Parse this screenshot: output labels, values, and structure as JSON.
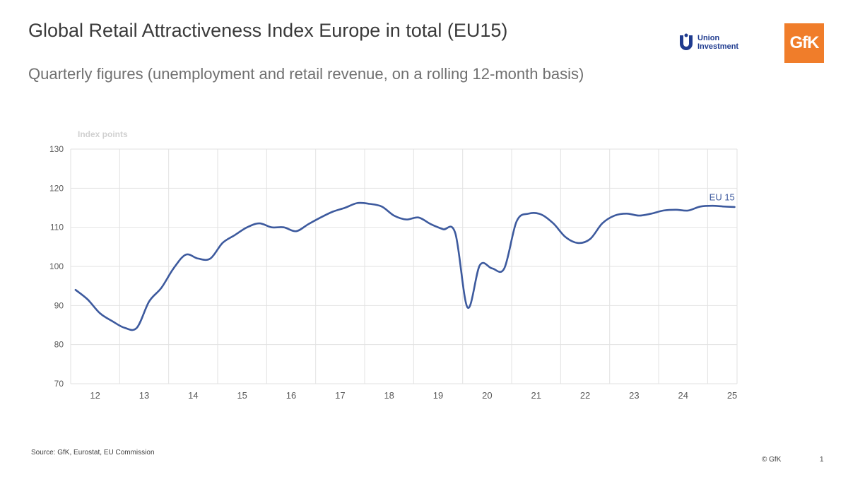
{
  "header": {
    "title": "Global Retail Attractiveness Index Europe in total (EU15)",
    "subtitle": "Quarterly figures (unemployment and retail revenue, on a rolling 12-month basis)"
  },
  "logos": {
    "union_investment_line1": "Union",
    "union_investment_line2": "Investment",
    "gfk": "GfK"
  },
  "footer": {
    "source": "Source: GfK, Eurostat, EU Commission",
    "copyright": "© GfK",
    "page_number": "1"
  },
  "colors": {
    "line": "#3d5a9e",
    "grid": "#e2e2e2",
    "axis_text": "#595959",
    "gfk_orange": "#f07d2a",
    "union_blue": "#1f3b8f"
  },
  "chart_data": {
    "type": "line",
    "ylabel": "Index points",
    "xlabel": "",
    "ylim": [
      70,
      130
    ],
    "yticks": [
      70,
      80,
      90,
      100,
      110,
      120,
      130
    ],
    "xlim": [
      11.5,
      25.1
    ],
    "xtick_values": [
      12,
      13,
      14,
      15,
      16,
      17,
      18,
      19,
      20,
      21,
      22,
      23,
      24,
      25
    ],
    "xtick_labels": [
      "12",
      "13",
      "14",
      "15",
      "16",
      "17",
      "18",
      "19",
      "20",
      "21",
      "22",
      "23",
      "24",
      "25"
    ],
    "grid": true,
    "series": [
      {
        "name": "EU 15",
        "x": [
          11.6,
          11.85,
          12.1,
          12.35,
          12.6,
          12.85,
          13.1,
          13.35,
          13.6,
          13.85,
          14.1,
          14.35,
          14.6,
          14.85,
          15.1,
          15.35,
          15.6,
          15.85,
          16.1,
          16.35,
          16.6,
          16.85,
          17.1,
          17.35,
          17.6,
          17.85,
          18.1,
          18.35,
          18.6,
          18.85,
          19.1,
          19.35,
          19.6,
          19.85,
          20.1,
          20.35,
          20.6,
          20.85,
          21.1,
          21.35,
          21.6,
          21.85,
          22.1,
          22.35,
          22.6,
          22.85,
          23.1,
          23.35,
          23.6,
          23.85,
          24.1,
          24.35,
          24.6,
          24.85,
          25.05
        ],
        "y": [
          94,
          91.5,
          88,
          86,
          84.3,
          84.3,
          91,
          94.5,
          99.5,
          103,
          102,
          102,
          106,
          108,
          110,
          111,
          110,
          110,
          109,
          110.8,
          112.5,
          114,
          115,
          116.2,
          116,
          115.3,
          113,
          112,
          112.5,
          110.8,
          109.5,
          108.5,
          89.5,
          100.3,
          99.5,
          99.5,
          111.5,
          113.5,
          113.3,
          111,
          107.5,
          106,
          107,
          111,
          113,
          113.5,
          113,
          113.5,
          114.3,
          114.5,
          114.3,
          115.3,
          115.5,
          115.3,
          115.2
        ]
      }
    ],
    "annotations": [
      {
        "text": "EU 15",
        "x": 24.85,
        "y": 115.3
      }
    ]
  }
}
